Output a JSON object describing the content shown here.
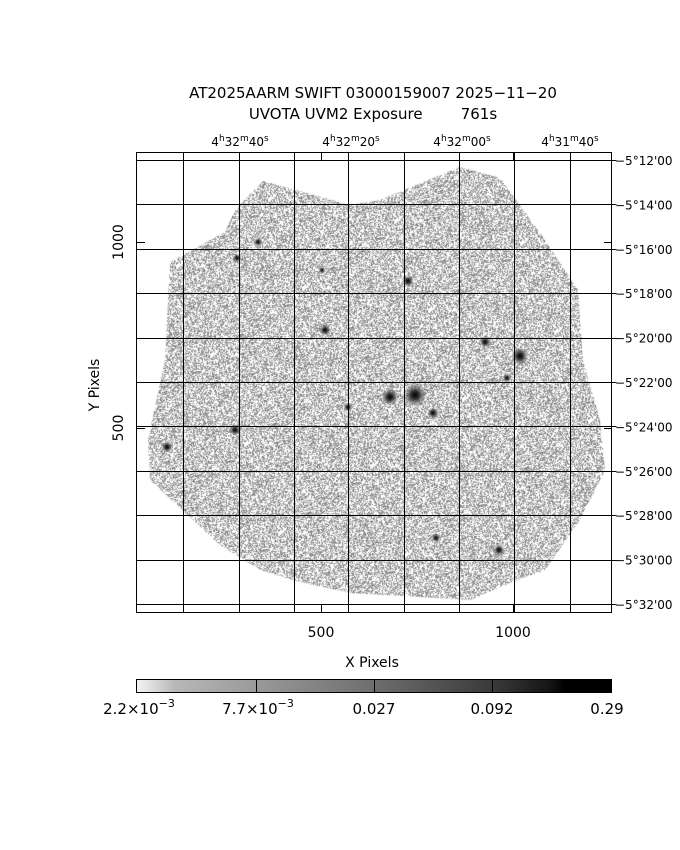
{
  "chart_data": {
    "type": "heatmap",
    "title_line1": "AT2025AARM SWIFT 03000159007 2025−11−20",
    "title_line2": "UVOTA UVM2 Exposure        761s",
    "xlabel": "X Pixels",
    "ylabel": "Y Pixels",
    "x_ticks": [
      "500",
      "1000"
    ],
    "y_ticks": [
      "500",
      "1000"
    ],
    "ra_ticks": [
      {
        "h": "4",
        "m": "32",
        "s": "40"
      },
      {
        "h": "4",
        "m": "32",
        "s": "20"
      },
      {
        "h": "4",
        "m": "32",
        "s": "00"
      },
      {
        "h": "4",
        "m": "31",
        "s": "40"
      }
    ],
    "dec_ticks": [
      "−5°12'00",
      "−5°14'00",
      "−5°16'00",
      "−5°18'00",
      "−5°20'00",
      "−5°22'00",
      "−5°24'00",
      "−5°26'00",
      "−5°28'00",
      "−5°30'00",
      "−5°32'00"
    ],
    "colorbar": {
      "scale": "log",
      "range": [
        0.0022,
        0.29
      ],
      "ticks": [
        {
          "base": "2.2×10",
          "exp": "−3"
        },
        {
          "base": "7.7×10",
          "exp": "−3"
        },
        {
          "base": "0.027",
          "exp": ""
        },
        {
          "base": "0.092",
          "exp": ""
        },
        {
          "base": "0.29",
          "exp": ""
        }
      ],
      "colormap": "grayscale (white to black)"
    },
    "grid": true
  }
}
